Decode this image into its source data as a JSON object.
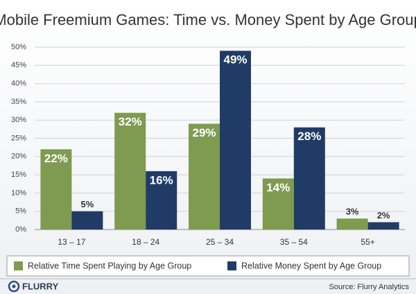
{
  "chart_data": {
    "type": "bar",
    "title": "Mobile Freemium Games: Time vs. Money Spent by Age Group",
    "categories": [
      "13 – 17",
      "18 – 24",
      "25 – 34",
      "35 – 54",
      "55+"
    ],
    "series": [
      {
        "name": "Relative Time Spent Playing by Age Group",
        "color": "#7e9b50",
        "values": [
          22,
          32,
          29,
          14,
          3
        ],
        "value_labels": [
          "22%",
          "32%",
          "29%",
          "14%",
          "3%"
        ]
      },
      {
        "name": "Relative Money Spent by Age Group",
        "color": "#203c66",
        "values": [
          5,
          16,
          49,
          28,
          2
        ],
        "value_labels": [
          "5%",
          "16%",
          "49%",
          "28%",
          "2%"
        ]
      }
    ],
    "ylim": [
      0,
      50
    ],
    "yticks": [
      {
        "value": 0,
        "label": "0%"
      },
      {
        "value": 5,
        "label": "5%"
      },
      {
        "value": 10,
        "label": "10%"
      },
      {
        "value": 15,
        "label": "15%"
      },
      {
        "value": 20,
        "label": "20%"
      },
      {
        "value": 25,
        "label": "25%"
      },
      {
        "value": 30,
        "label": "30%"
      },
      {
        "value": 35,
        "label": "35%"
      },
      {
        "value": 40,
        "label": "40%"
      },
      {
        "value": 45,
        "label": "45%"
      },
      {
        "value": 50,
        "label": "50%"
      }
    ],
    "grid": true,
    "legend": "bottom",
    "logo": "FLURRY",
    "source": "Source: Flurry Analytics"
  }
}
